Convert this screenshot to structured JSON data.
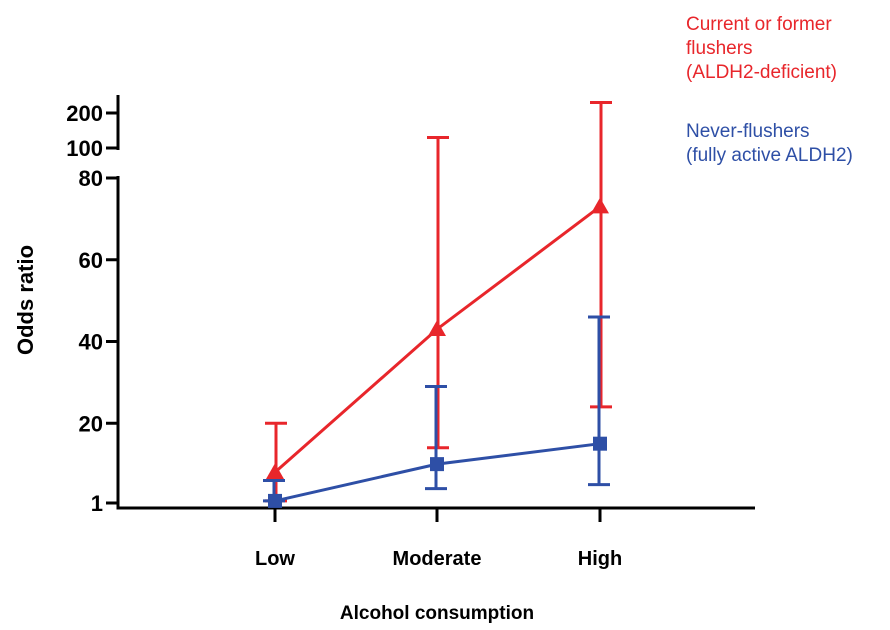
{
  "chart_data": {
    "type": "line",
    "title": "",
    "xlabel": "Alcohol consumption",
    "ylabel": "Odds ratio",
    "categories": [
      "Low",
      "Moderate",
      "High"
    ],
    "y_ticks_lower": [
      1,
      20,
      40,
      60,
      80
    ],
    "y_ticks_upper": [
      100,
      200
    ],
    "y_axis_break": true,
    "grid": false,
    "legend_position": "top-right",
    "series": [
      {
        "name": "Current or former\n flushers\n(ALDH2-deficient)",
        "legend_lines": [
          "Current or former",
          " flushers",
          "(ALDH2-deficient)"
        ],
        "color": "#e8262b",
        "marker": "triangle",
        "values": [
          8,
          43,
          73
        ],
        "err_high": [
          20,
          130,
          230
        ],
        "err_low": [
          1,
          14,
          24
        ]
      },
      {
        "name": "Never-flushers\n(fully active ALDH2)",
        "legend_lines": [
          "Never-flushers",
          "(fully active ALDH2)"
        ],
        "color": "#2e4fa6",
        "marker": "square",
        "values": [
          1,
          10,
          15
        ],
        "err_high": [
          6,
          29,
          46
        ],
        "err_low": [
          1,
          4,
          5
        ]
      }
    ]
  }
}
